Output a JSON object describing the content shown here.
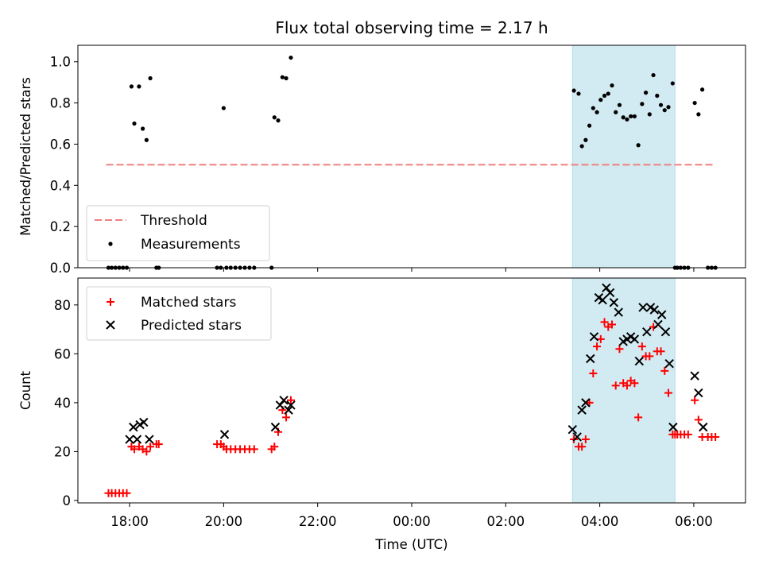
{
  "title": "Flux total observing time = 2.17 h",
  "colors": {
    "threshold": "#f08080",
    "measurement": "#000000",
    "matched": "#ff0000",
    "predicted": "#000000",
    "shade": "#add8e6"
  },
  "chart_data": [
    {
      "type": "scatter",
      "ylabel": "Matched/Predicted stars",
      "xlabel": "",
      "xlim": [
        16.9,
        31.1
      ],
      "ylim": [
        0,
        1.08
      ],
      "yticks": [
        "0.0",
        "0.2",
        "0.4",
        "0.6",
        "0.8",
        "1.0"
      ],
      "ytick_values": [
        0,
        0.2,
        0.4,
        0.6,
        0.8,
        1.0
      ],
      "legend": {
        "position": "lower-left",
        "entries": [
          "Threshold",
          "Measurements"
        ]
      },
      "shaded_span": [
        27.42,
        29.6
      ],
      "threshold": {
        "name": "Threshold",
        "x": [
          17.5,
          30.4
        ],
        "y": 0.5
      },
      "series": [
        {
          "name": "Measurements",
          "x": [
            17.55,
            17.62,
            17.7,
            17.78,
            17.86,
            17.94,
            18.04,
            18.1,
            18.2,
            18.28,
            18.36,
            18.44,
            18.57,
            18.62,
            19.86,
            19.94,
            20.0,
            20.06,
            20.15,
            20.25,
            20.35,
            20.45,
            20.55,
            20.65,
            21.02,
            21.08,
            21.16,
            21.25,
            21.33,
            21.43,
            27.45,
            27.55,
            27.62,
            27.7,
            27.78,
            27.86,
            27.94,
            28.02,
            28.1,
            28.18,
            28.26,
            28.34,
            28.42,
            28.5,
            28.58,
            28.66,
            28.74,
            28.82,
            28.9,
            28.98,
            29.06,
            29.14,
            29.22,
            29.3,
            29.38,
            29.46,
            29.55,
            29.6,
            29.65,
            29.72,
            29.8,
            29.88,
            30.02,
            30.1,
            30.18,
            30.3,
            30.38,
            30.46
          ],
          "y": [
            0,
            0,
            0,
            0,
            0,
            0,
            0.88,
            0.7,
            0.88,
            0.675,
            0.62,
            0.92,
            0,
            0,
            0,
            0,
            0.775,
            0,
            0,
            0,
            0,
            0,
            0,
            0,
            0,
            0.73,
            0.715,
            0.925,
            0.92,
            1.02,
            0.86,
            0.845,
            0.59,
            0.62,
            0.69,
            0.775,
            0.755,
            0.815,
            0.835,
            0.845,
            0.885,
            0.755,
            0.79,
            0.73,
            0.72,
            0.735,
            0.735,
            0.595,
            0.795,
            0.85,
            0.745,
            0.935,
            0.835,
            0.79,
            0.765,
            0.78,
            0.895,
            0,
            0,
            0,
            0,
            0,
            0.8,
            0.745,
            0.865,
            0,
            0,
            0
          ]
        }
      ]
    },
    {
      "type": "scatter",
      "ylabel": "Count",
      "xlabel": "Time (UTC)",
      "xlim": [
        16.9,
        31.1
      ],
      "ylim": [
        -1,
        91
      ],
      "yticks": [
        "0",
        "20",
        "40",
        "60",
        "80"
      ],
      "ytick_values": [
        0,
        20,
        40,
        60,
        80
      ],
      "xticks": [
        "18:00",
        "20:00",
        "22:00",
        "00:00",
        "02:00",
        "04:00",
        "06:00"
      ],
      "xtick_values": [
        18,
        20,
        22,
        24,
        26,
        28,
        30
      ],
      "legend": {
        "position": "upper-left",
        "entries": [
          "Matched stars",
          "Predicted stars"
        ]
      },
      "shaded_span": [
        27.42,
        29.6
      ],
      "series": [
        {
          "name": "Matched stars",
          "marker": "plus",
          "x": [
            17.55,
            17.62,
            17.7,
            17.78,
            17.86,
            17.94,
            18.04,
            18.1,
            18.2,
            18.28,
            18.36,
            18.44,
            18.57,
            18.62,
            19.86,
            19.94,
            20.0,
            20.06,
            20.15,
            20.25,
            20.35,
            20.45,
            20.55,
            20.65,
            21.02,
            21.08,
            21.16,
            21.25,
            21.33,
            21.43,
            27.45,
            27.55,
            27.62,
            27.7,
            27.78,
            27.86,
            27.94,
            28.02,
            28.1,
            28.18,
            28.26,
            28.34,
            28.42,
            28.5,
            28.58,
            28.66,
            28.74,
            28.82,
            28.9,
            28.98,
            29.06,
            29.14,
            29.22,
            29.3,
            29.38,
            29.46,
            29.55,
            29.6,
            29.65,
            29.72,
            29.8,
            29.88,
            30.02,
            30.1,
            30.18,
            30.3,
            30.38,
            30.46
          ],
          "y": [
            3,
            3,
            3,
            3,
            3,
            3,
            22,
            21,
            22,
            21,
            20,
            22,
            23,
            23,
            23,
            23,
            22,
            21,
            21,
            21,
            21,
            21,
            21,
            21,
            21,
            22,
            28,
            37,
            34,
            41,
            25,
            22,
            22,
            25,
            40,
            52,
            63,
            66,
            73,
            71,
            72,
            47,
            62,
            48,
            47,
            49,
            48,
            34,
            63,
            59,
            59,
            71,
            61,
            61,
            53,
            44,
            27,
            27,
            27,
            27,
            27,
            27,
            41,
            33,
            26,
            26,
            26,
            26
          ]
        },
        {
          "name": "Predicted stars",
          "marker": "x",
          "x": [
            18.0,
            18.08,
            18.16,
            18.22,
            18.3,
            18.42,
            20.02,
            21.1,
            21.2,
            21.28,
            21.38,
            21.43,
            27.42,
            27.52,
            27.62,
            27.7,
            27.8,
            27.88,
            27.98,
            28.06,
            28.14,
            28.22,
            28.3,
            28.4,
            28.5,
            28.58,
            28.66,
            28.74,
            28.84,
            28.92,
            29.0,
            29.08,
            29.16,
            29.24,
            29.32,
            29.4,
            29.48,
            29.56,
            30.02,
            30.1,
            30.2
          ],
          "y": [
            25,
            30,
            25,
            31,
            32,
            25,
            27,
            30,
            39,
            41,
            37,
            39,
            29,
            26,
            37,
            40,
            58,
            67,
            83,
            82,
            87,
            85,
            81,
            77,
            65,
            66,
            67,
            66,
            57,
            79,
            69,
            79,
            78,
            72,
            76,
            69,
            56,
            30,
            51,
            44,
            30
          ]
        }
      ]
    }
  ]
}
